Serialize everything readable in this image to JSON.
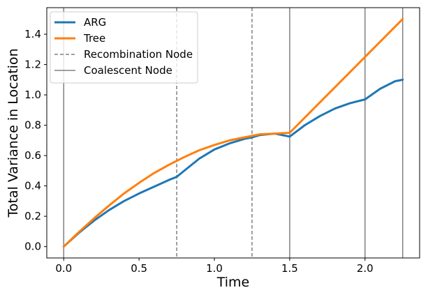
{
  "chart_data": {
    "type": "line",
    "xlabel": "Time",
    "ylabel": "Total Variance in Location",
    "xlim": [
      -0.1125,
      2.3625
    ],
    "ylim": [
      -0.075,
      1.575
    ],
    "x_ticks": [
      0.0,
      0.5,
      1.0,
      1.5,
      2.0
    ],
    "x_tick_labels": [
      "0.0",
      "0.5",
      "1.0",
      "1.5",
      "2.0"
    ],
    "y_ticks": [
      0.0,
      0.2,
      0.4,
      0.6,
      0.8,
      1.0,
      1.2,
      1.4
    ],
    "y_tick_labels": [
      "0.0",
      "0.2",
      "0.4",
      "0.6",
      "0.8",
      "1.0",
      "1.2",
      "1.4"
    ],
    "grid": false,
    "legend_position": "top-left",
    "series": [
      {
        "name": "ARG",
        "color": "#1f77b4",
        "x": [
          0.0,
          0.1,
          0.2,
          0.3,
          0.4,
          0.5,
          0.6,
          0.7,
          0.75,
          0.8,
          0.9,
          1.0,
          1.1,
          1.2,
          1.25,
          1.3,
          1.4,
          1.5,
          1.6,
          1.7,
          1.8,
          1.9,
          2.0,
          2.1,
          2.2,
          2.25
        ],
        "y": [
          0.0,
          0.09,
          0.17,
          0.24,
          0.3,
          0.35,
          0.395,
          0.44,
          0.46,
          0.5,
          0.58,
          0.64,
          0.68,
          0.71,
          0.72,
          0.735,
          0.745,
          0.725,
          0.8,
          0.86,
          0.91,
          0.945,
          0.97,
          1.04,
          1.09,
          1.1
        ]
      },
      {
        "name": "Tree",
        "color": "#ff7f0e",
        "x": [
          0.0,
          0.1,
          0.2,
          0.3,
          0.4,
          0.5,
          0.6,
          0.7,
          0.8,
          0.9,
          1.0,
          1.1,
          1.2,
          1.3,
          1.4,
          1.5,
          1.75,
          2.0,
          2.25
        ],
        "y": [
          0.0,
          0.095,
          0.185,
          0.27,
          0.35,
          0.42,
          0.485,
          0.54,
          0.59,
          0.635,
          0.67,
          0.7,
          0.72,
          0.74,
          0.745,
          0.75,
          1.0,
          1.25,
          1.5
        ]
      }
    ],
    "vlines": [
      {
        "x": 0.0,
        "kind": "coalescent"
      },
      {
        "x": 0.75,
        "kind": "recombination"
      },
      {
        "x": 1.25,
        "kind": "recombination"
      },
      {
        "x": 1.5,
        "kind": "coalescent"
      },
      {
        "x": 2.0,
        "kind": "coalescent"
      },
      {
        "x": 2.25,
        "kind": "coalescent"
      }
    ],
    "legend": [
      {
        "label": "ARG",
        "style": "solid-thick",
        "color": "#1f77b4"
      },
      {
        "label": "Tree",
        "style": "solid-thick",
        "color": "#ff7f0e"
      },
      {
        "label": "Recombination Node",
        "style": "dashed",
        "color": "#808080"
      },
      {
        "label": "Coalescent Node",
        "style": "solid-thin",
        "color": "#808080"
      }
    ]
  }
}
